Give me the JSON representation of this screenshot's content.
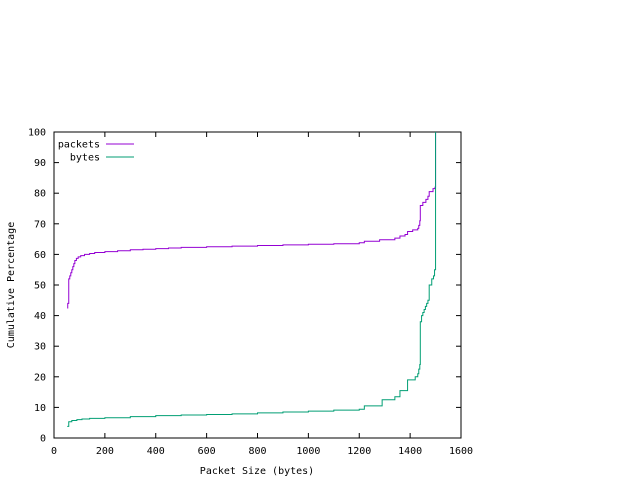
{
  "chart_data": {
    "type": "line",
    "title": "",
    "xlabel": "Packet Size (bytes)",
    "ylabel": "Cumulative Percentage",
    "xlim": [
      0,
      1600
    ],
    "ylim": [
      0,
      100
    ],
    "xticks": [
      0,
      200,
      400,
      600,
      800,
      1000,
      1200,
      1400,
      1600
    ],
    "yticks": [
      0,
      10,
      20,
      30,
      40,
      50,
      60,
      70,
      80,
      90,
      100
    ],
    "grid": false,
    "legend_position": "top-left",
    "step": true,
    "series": [
      {
        "name": "packets",
        "color": "#9400d3",
        "points": [
          [
            52,
            42.5
          ],
          [
            54,
            44
          ],
          [
            58,
            52
          ],
          [
            62,
            53
          ],
          [
            66,
            54
          ],
          [
            70,
            55
          ],
          [
            74,
            56
          ],
          [
            78,
            57
          ],
          [
            82,
            58
          ],
          [
            88,
            58.7
          ],
          [
            95,
            59.2
          ],
          [
            105,
            59.6
          ],
          [
            120,
            60
          ],
          [
            140,
            60.3
          ],
          [
            160,
            60.6
          ],
          [
            200,
            60.9
          ],
          [
            250,
            61.2
          ],
          [
            300,
            61.5
          ],
          [
            350,
            61.7
          ],
          [
            400,
            61.9
          ],
          [
            450,
            62.1
          ],
          [
            500,
            62.3
          ],
          [
            600,
            62.5
          ],
          [
            700,
            62.7
          ],
          [
            800,
            62.9
          ],
          [
            900,
            63.1
          ],
          [
            1000,
            63.3
          ],
          [
            1100,
            63.5
          ],
          [
            1200,
            63.8
          ],
          [
            1220,
            64.3
          ],
          [
            1280,
            64.8
          ],
          [
            1340,
            65.3
          ],
          [
            1360,
            66
          ],
          [
            1380,
            66.5
          ],
          [
            1390,
            67.5
          ],
          [
            1410,
            68
          ],
          [
            1430,
            68.5
          ],
          [
            1434,
            69.5
          ],
          [
            1438,
            71
          ],
          [
            1440,
            76
          ],
          [
            1450,
            77
          ],
          [
            1462,
            78
          ],
          [
            1470,
            79
          ],
          [
            1475,
            80.5
          ],
          [
            1490,
            81.5
          ],
          [
            1498,
            82
          ],
          [
            1500,
            100
          ]
        ]
      },
      {
        "name": "bytes",
        "color": "#009e73",
        "points": [
          [
            52,
            3.8
          ],
          [
            58,
            5.3
          ],
          [
            70,
            5.7
          ],
          [
            90,
            6
          ],
          [
            110,
            6.2
          ],
          [
            140,
            6.4
          ],
          [
            200,
            6.6
          ],
          [
            300,
            7
          ],
          [
            400,
            7.3
          ],
          [
            500,
            7.5
          ],
          [
            600,
            7.7
          ],
          [
            700,
            7.9
          ],
          [
            800,
            8.2
          ],
          [
            900,
            8.5
          ],
          [
            1000,
            8.8
          ],
          [
            1100,
            9.1
          ],
          [
            1200,
            9.4
          ],
          [
            1220,
            10.5
          ],
          [
            1290,
            12.5
          ],
          [
            1340,
            13.5
          ],
          [
            1360,
            15.5
          ],
          [
            1390,
            19
          ],
          [
            1420,
            20
          ],
          [
            1430,
            21
          ],
          [
            1434,
            22.5
          ],
          [
            1438,
            24
          ],
          [
            1440,
            38
          ],
          [
            1445,
            40
          ],
          [
            1450,
            41
          ],
          [
            1455,
            42
          ],
          [
            1460,
            43
          ],
          [
            1465,
            44
          ],
          [
            1470,
            45
          ],
          [
            1475,
            50
          ],
          [
            1485,
            52
          ],
          [
            1492,
            53
          ],
          [
            1496,
            55
          ],
          [
            1500,
            100
          ]
        ]
      }
    ]
  }
}
